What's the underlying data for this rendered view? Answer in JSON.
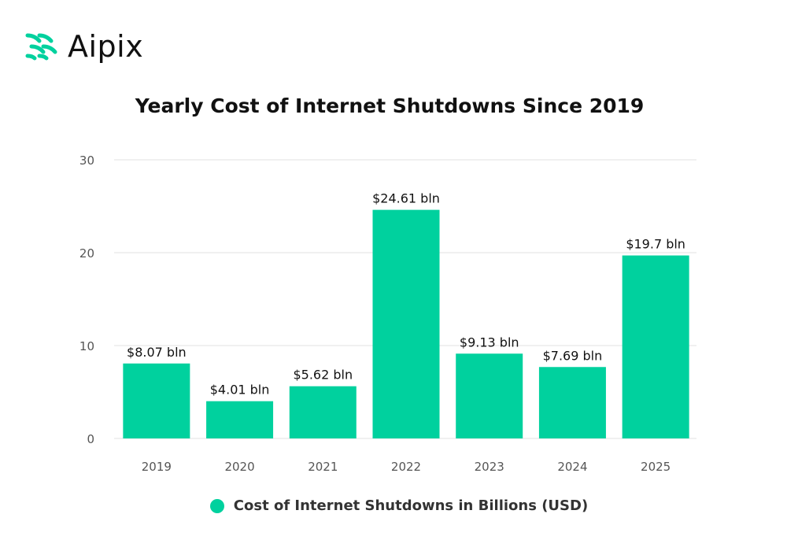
{
  "brand": {
    "name": "Aipix",
    "accent_color": "#00d19e"
  },
  "chart_data": {
    "type": "bar",
    "title": "Yearly Cost of Internet Shutdowns Since 2019",
    "xlabel": "",
    "ylabel": "",
    "categories": [
      "2019",
      "2020",
      "2021",
      "2022",
      "2023",
      "2024",
      "2025"
    ],
    "series": [
      {
        "name": "Cost of Internet Shutdowns in Billions (USD)",
        "values": [
          8.07,
          4.01,
          5.62,
          24.61,
          9.13,
          7.69,
          19.7
        ],
        "labels": [
          "$8.07 bln",
          "$4.01 bln",
          "$5.62 bln",
          "$24.61 bln",
          "$9.13 bln",
          "$7.69 bln",
          "$19.7 bln"
        ],
        "color": "#00d19e"
      }
    ],
    "ylim": [
      0,
      30
    ],
    "yticks": [
      0,
      10,
      20,
      30
    ],
    "grid": true,
    "legend_position": "bottom-center"
  }
}
